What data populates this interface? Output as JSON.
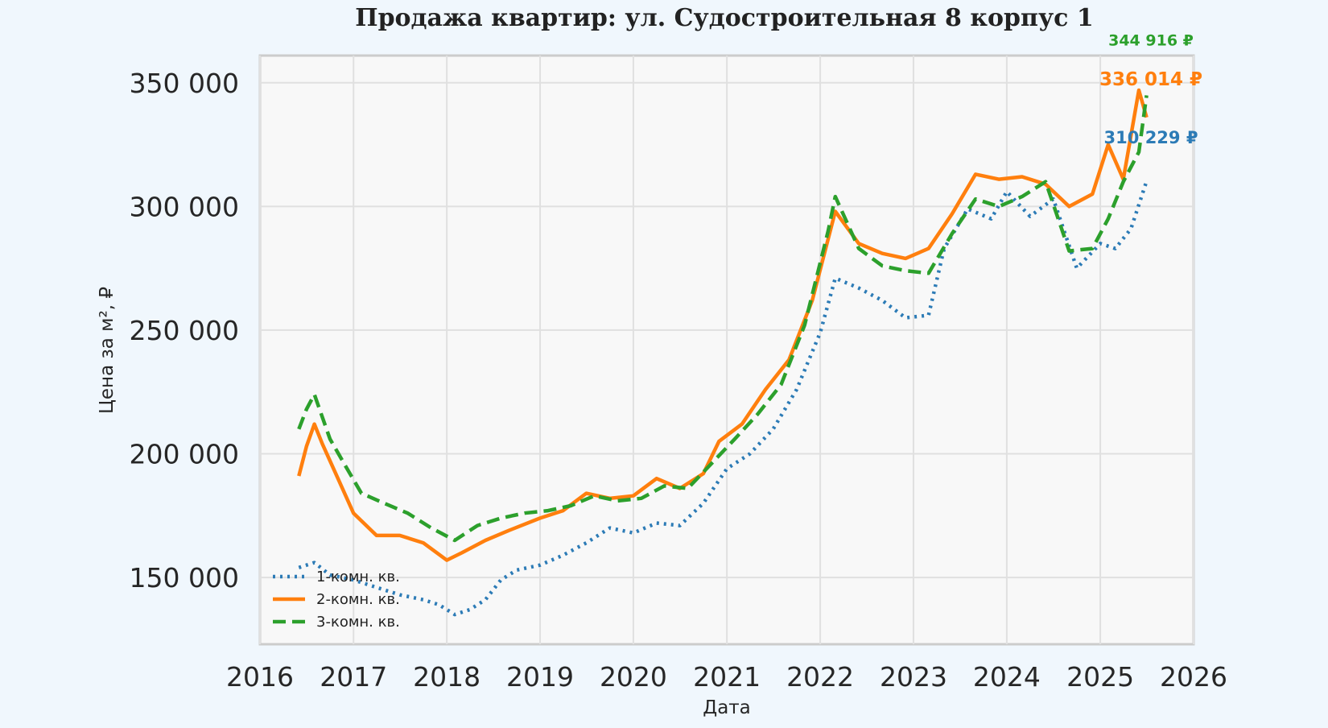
{
  "chart_data": {
    "type": "line",
    "title": "Продажа квартир: ул. Судостроительная 8 корпус 1",
    "xlabel": "Дата",
    "ylabel": "Цена за м², ₽",
    "xlim": [
      "2016-01-01",
      "2026-01-01"
    ],
    "ylim": [
      123000,
      361000
    ],
    "x_ticks": [
      "2016",
      "2017",
      "2018",
      "2019",
      "2020",
      "2021",
      "2022",
      "2023",
      "2024",
      "2025",
      "2026"
    ],
    "y_ticks": [
      "150 000",
      "200 000",
      "250 000",
      "300 000",
      "350 000"
    ],
    "y_tick_values": [
      150000,
      200000,
      250000,
      300000,
      350000
    ],
    "grid": true,
    "legend_position": "lower-left",
    "series": [
      {
        "name": "1-комн. кв.",
        "color": "#2c7bb6",
        "style": "dotted",
        "end_label": "310 229 ₽",
        "points": [
          [
            "2016-06-01",
            154000
          ],
          [
            "2016-08-01",
            156000
          ],
          [
            "2016-10-01",
            151000
          ],
          [
            "2017-01-01",
            149000
          ],
          [
            "2017-04-01",
            146000
          ],
          [
            "2017-07-01",
            143000
          ],
          [
            "2017-10-01",
            141000
          ],
          [
            "2017-12-01",
            139000
          ],
          [
            "2018-02-01",
            135000
          ],
          [
            "2018-04-01",
            137000
          ],
          [
            "2018-06-01",
            141000
          ],
          [
            "2018-08-01",
            149000
          ],
          [
            "2018-10-01",
            153000
          ],
          [
            "2019-01-01",
            155000
          ],
          [
            "2019-04-01",
            159000
          ],
          [
            "2019-07-01",
            164000
          ],
          [
            "2019-10-01",
            170000
          ],
          [
            "2020-01-01",
            168000
          ],
          [
            "2020-04-01",
            172000
          ],
          [
            "2020-07-01",
            171000
          ],
          [
            "2020-10-01",
            180000
          ],
          [
            "2021-01-01",
            194000
          ],
          [
            "2021-04-01",
            200000
          ],
          [
            "2021-07-01",
            210000
          ],
          [
            "2021-10-01",
            226000
          ],
          [
            "2022-01-01",
            249000
          ],
          [
            "2022-03-01",
            271000
          ],
          [
            "2022-06-01",
            267000
          ],
          [
            "2022-09-01",
            262000
          ],
          [
            "2022-12-01",
            255000
          ],
          [
            "2023-03-01",
            256000
          ],
          [
            "2023-05-01",
            283000
          ],
          [
            "2023-08-01",
            299000
          ],
          [
            "2023-11-01",
            295000
          ],
          [
            "2024-01-01",
            306000
          ],
          [
            "2024-04-01",
            296000
          ],
          [
            "2024-07-01",
            303000
          ],
          [
            "2024-10-01",
            275000
          ],
          [
            "2025-01-01",
            285000
          ],
          [
            "2025-03-01",
            283000
          ],
          [
            "2025-05-01",
            291000
          ],
          [
            "2025-07-01",
            310229
          ]
        ]
      },
      {
        "name": "2-комн. кв.",
        "color": "#ff7f0e",
        "style": "solid",
        "end_label": "336 014 ₽",
        "points": [
          [
            "2016-06-01",
            191000
          ],
          [
            "2016-07-01",
            203000
          ],
          [
            "2016-08-01",
            212000
          ],
          [
            "2016-09-01",
            204000
          ],
          [
            "2016-11-01",
            190000
          ],
          [
            "2017-01-01",
            176000
          ],
          [
            "2017-04-01",
            167000
          ],
          [
            "2017-07-01",
            167000
          ],
          [
            "2017-10-01",
            164000
          ],
          [
            "2018-01-01",
            157000
          ],
          [
            "2018-03-01",
            160000
          ],
          [
            "2018-06-01",
            165000
          ],
          [
            "2018-09-01",
            169000
          ],
          [
            "2019-01-01",
            174000
          ],
          [
            "2019-04-01",
            177000
          ],
          [
            "2019-07-01",
            184000
          ],
          [
            "2019-10-01",
            182000
          ],
          [
            "2020-01-01",
            183000
          ],
          [
            "2020-04-01",
            190000
          ],
          [
            "2020-07-01",
            186000
          ],
          [
            "2020-10-01",
            192000
          ],
          [
            "2020-12-01",
            205000
          ],
          [
            "2021-03-01",
            212000
          ],
          [
            "2021-06-01",
            226000
          ],
          [
            "2021-09-01",
            238000
          ],
          [
            "2021-12-01",
            262000
          ],
          [
            "2022-03-01",
            298000
          ],
          [
            "2022-06-01",
            285000
          ],
          [
            "2022-09-01",
            281000
          ],
          [
            "2022-12-01",
            279000
          ],
          [
            "2023-03-01",
            283000
          ],
          [
            "2023-06-01",
            297000
          ],
          [
            "2023-09-01",
            313000
          ],
          [
            "2023-12-01",
            311000
          ],
          [
            "2024-03-01",
            312000
          ],
          [
            "2024-06-01",
            309000
          ],
          [
            "2024-09-01",
            300000
          ],
          [
            "2024-12-01",
            305000
          ],
          [
            "2025-02-01",
            325000
          ],
          [
            "2025-04-01",
            311000
          ],
          [
            "2025-06-01",
            347000
          ],
          [
            "2025-07-01",
            336014
          ]
        ]
      },
      {
        "name": "3-комн. кв.",
        "color": "#2ca02c",
        "style": "dashed",
        "end_label": "344 916 ₽",
        "points": [
          [
            "2016-06-01",
            210000
          ],
          [
            "2016-07-01",
            218000
          ],
          [
            "2016-08-01",
            224000
          ],
          [
            "2016-10-01",
            206000
          ],
          [
            "2016-12-01",
            195000
          ],
          [
            "2017-02-01",
            184000
          ],
          [
            "2017-05-01",
            180000
          ],
          [
            "2017-08-01",
            176000
          ],
          [
            "2017-11-01",
            170000
          ],
          [
            "2018-02-01",
            165000
          ],
          [
            "2018-05-01",
            171000
          ],
          [
            "2018-08-01",
            174000
          ],
          [
            "2018-11-01",
            176000
          ],
          [
            "2019-02-01",
            177000
          ],
          [
            "2019-05-01",
            179000
          ],
          [
            "2019-08-01",
            183000
          ],
          [
            "2019-11-01",
            181000
          ],
          [
            "2020-02-01",
            182000
          ],
          [
            "2020-05-01",
            187000
          ],
          [
            "2020-08-01",
            186000
          ],
          [
            "2020-11-01",
            196000
          ],
          [
            "2021-02-01",
            206000
          ],
          [
            "2021-05-01",
            216000
          ],
          [
            "2021-08-01",
            228000
          ],
          [
            "2021-11-01",
            252000
          ],
          [
            "2022-02-01",
            290000
          ],
          [
            "2022-03-01",
            304000
          ],
          [
            "2022-06-01",
            283000
          ],
          [
            "2022-09-01",
            276000
          ],
          [
            "2022-12-01",
            274000
          ],
          [
            "2023-03-01",
            273000
          ],
          [
            "2023-06-01",
            289000
          ],
          [
            "2023-09-01",
            303000
          ],
          [
            "2023-12-01",
            300000
          ],
          [
            "2024-03-01",
            304000
          ],
          [
            "2024-06-01",
            310000
          ],
          [
            "2024-09-01",
            282000
          ],
          [
            "2024-12-01",
            283000
          ],
          [
            "2025-02-01",
            295000
          ],
          [
            "2025-04-01",
            310000
          ],
          [
            "2025-06-01",
            322000
          ],
          [
            "2025-07-01",
            344916
          ]
        ]
      }
    ]
  }
}
